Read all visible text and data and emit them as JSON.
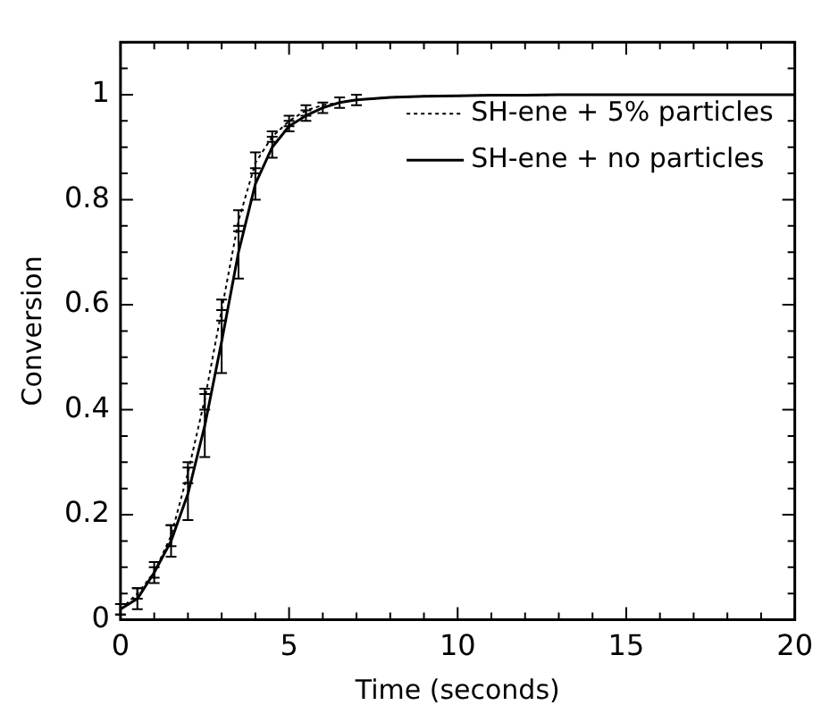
{
  "chart_data": {
    "type": "line",
    "xlabel": "Time (seconds)",
    "ylabel": "Conversion",
    "xlim": [
      0,
      20
    ],
    "ylim": [
      0,
      1.1
    ],
    "xticks": [
      0,
      5,
      10,
      15,
      20
    ],
    "yticks": [
      0,
      0.2,
      0.4,
      0.6,
      0.8,
      1
    ],
    "grid": false,
    "legend": "top right",
    "marker": "none",
    "x": [
      0,
      0.5,
      1,
      1.5,
      2,
      2.5,
      3,
      3.5,
      4,
      4.5,
      5,
      5.5,
      6,
      6.5,
      7,
      8,
      9,
      10,
      11,
      12,
      13,
      14,
      15,
      16,
      17,
      18,
      19,
      20
    ],
    "series": [
      {
        "name": "SH-ene + 5% particles",
        "color": "#000000",
        "line_style": "dotted",
        "values": [
          0.02,
          0.05,
          0.09,
          0.16,
          0.28,
          0.42,
          0.59,
          0.76,
          0.87,
          0.92,
          0.95,
          0.97,
          0.98,
          0.985,
          0.99,
          0.995,
          0.997,
          0.998,
          0.999,
          0.999,
          1,
          1,
          1,
          1,
          1,
          1,
          1,
          1
        ],
        "errors": [
          0.01,
          0.01,
          0.01,
          0.02,
          0.02,
          0.02,
          0.02,
          0.02,
          0.02,
          0.01,
          0.01,
          0.01,
          null,
          null,
          null,
          null,
          null,
          null,
          null,
          null,
          null,
          null,
          null,
          null,
          null,
          null,
          null,
          null
        ]
      },
      {
        "name": "SH-ene + no particles",
        "color": "#000000",
        "line_style": "solid",
        "values": [
          0.02,
          0.04,
          0.09,
          0.15,
          0.24,
          0.37,
          0.53,
          0.7,
          0.83,
          0.9,
          0.94,
          0.96,
          0.975,
          0.985,
          0.99,
          0.995,
          0.997,
          0.998,
          0.999,
          0.999,
          1,
          1,
          1,
          1,
          1,
          1,
          1,
          1
        ],
        "errors": [
          0.01,
          0.02,
          0.02,
          0.03,
          0.05,
          0.06,
          0.06,
          0.05,
          0.03,
          0.02,
          0.01,
          0.01,
          0.01,
          0.01,
          0.01,
          null,
          null,
          null,
          null,
          null,
          null,
          null,
          null,
          null,
          null,
          null,
          null,
          null
        ]
      }
    ]
  }
}
